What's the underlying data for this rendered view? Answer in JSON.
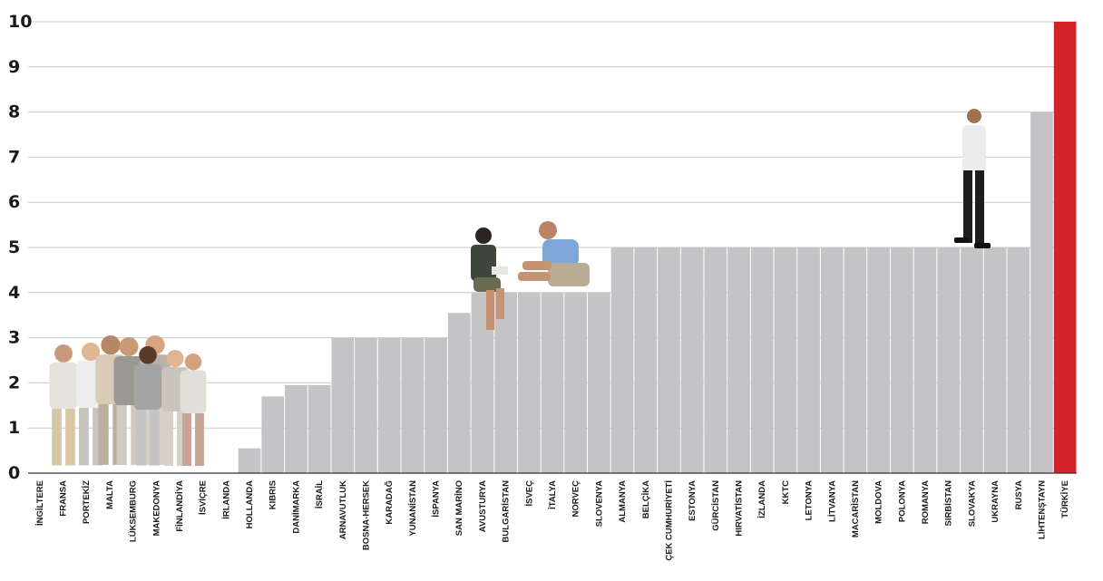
{
  "chart_data": {
    "type": "bar",
    "ylim": [
      0,
      10
    ],
    "yticks": [
      "0",
      "1",
      "2",
      "3",
      "4",
      "5",
      "6",
      "7",
      "8",
      "9",
      "10"
    ],
    "categories": [
      "İNGİLTERE",
      "FRANSA",
      "PORTEKİZ",
      "MALTA",
      "LÜKSEMBURG",
      "MAKEDONYA",
      "FİNLANDİYA",
      "İSVİÇRE",
      "İRLANDA",
      "HOLLANDA",
      "KIBRIS",
      "DANİMARKA",
      "İSRAİL",
      "ARNAVUTLUK",
      "BOSNA-HERSEK",
      "KARADAĞ",
      "YUNANİSTAN",
      "İSPANYA",
      "SAN MARİNO",
      "AVUSTURYA",
      "BULGARİSTAN",
      "İSVEÇ",
      "İTALYA",
      "NORVEÇ",
      "SLOVENYA",
      "ALMANYA",
      "BELÇİKA",
      "ÇEK CUMHURİYETİ",
      "ESTONYA",
      "GÜRCİSTAN",
      "HIRVATİSTAN",
      "İZLANDA",
      "KKTC",
      "LETONYA",
      "LİTVANYA",
      "MACARİSTAN",
      "MOLDOVA",
      "POLONYA",
      "ROMANYA",
      "SIRBİSTAN",
      "SLOVAKYA",
      "UKRAYNA",
      "RUSYA",
      "LİHTENŞTAYN",
      "TÜRKİYE"
    ],
    "values": [
      0,
      0,
      0,
      0,
      0,
      0,
      0,
      0,
      0,
      0.55,
      1.7,
      1.95,
      1.95,
      3,
      3,
      3,
      3,
      3,
      3.55,
      4,
      4,
      4,
      4,
      4,
      4,
      5,
      5,
      5,
      5,
      5,
      5,
      5,
      5,
      5,
      5,
      5,
      5,
      5,
      5,
      5,
      5,
      5,
      5,
      8,
      10
    ],
    "colors": {
      "default": "#c4c4c6",
      "highlight": "#d2232a"
    },
    "highlight_category": "TÜRKİYE",
    "grid": true
  }
}
